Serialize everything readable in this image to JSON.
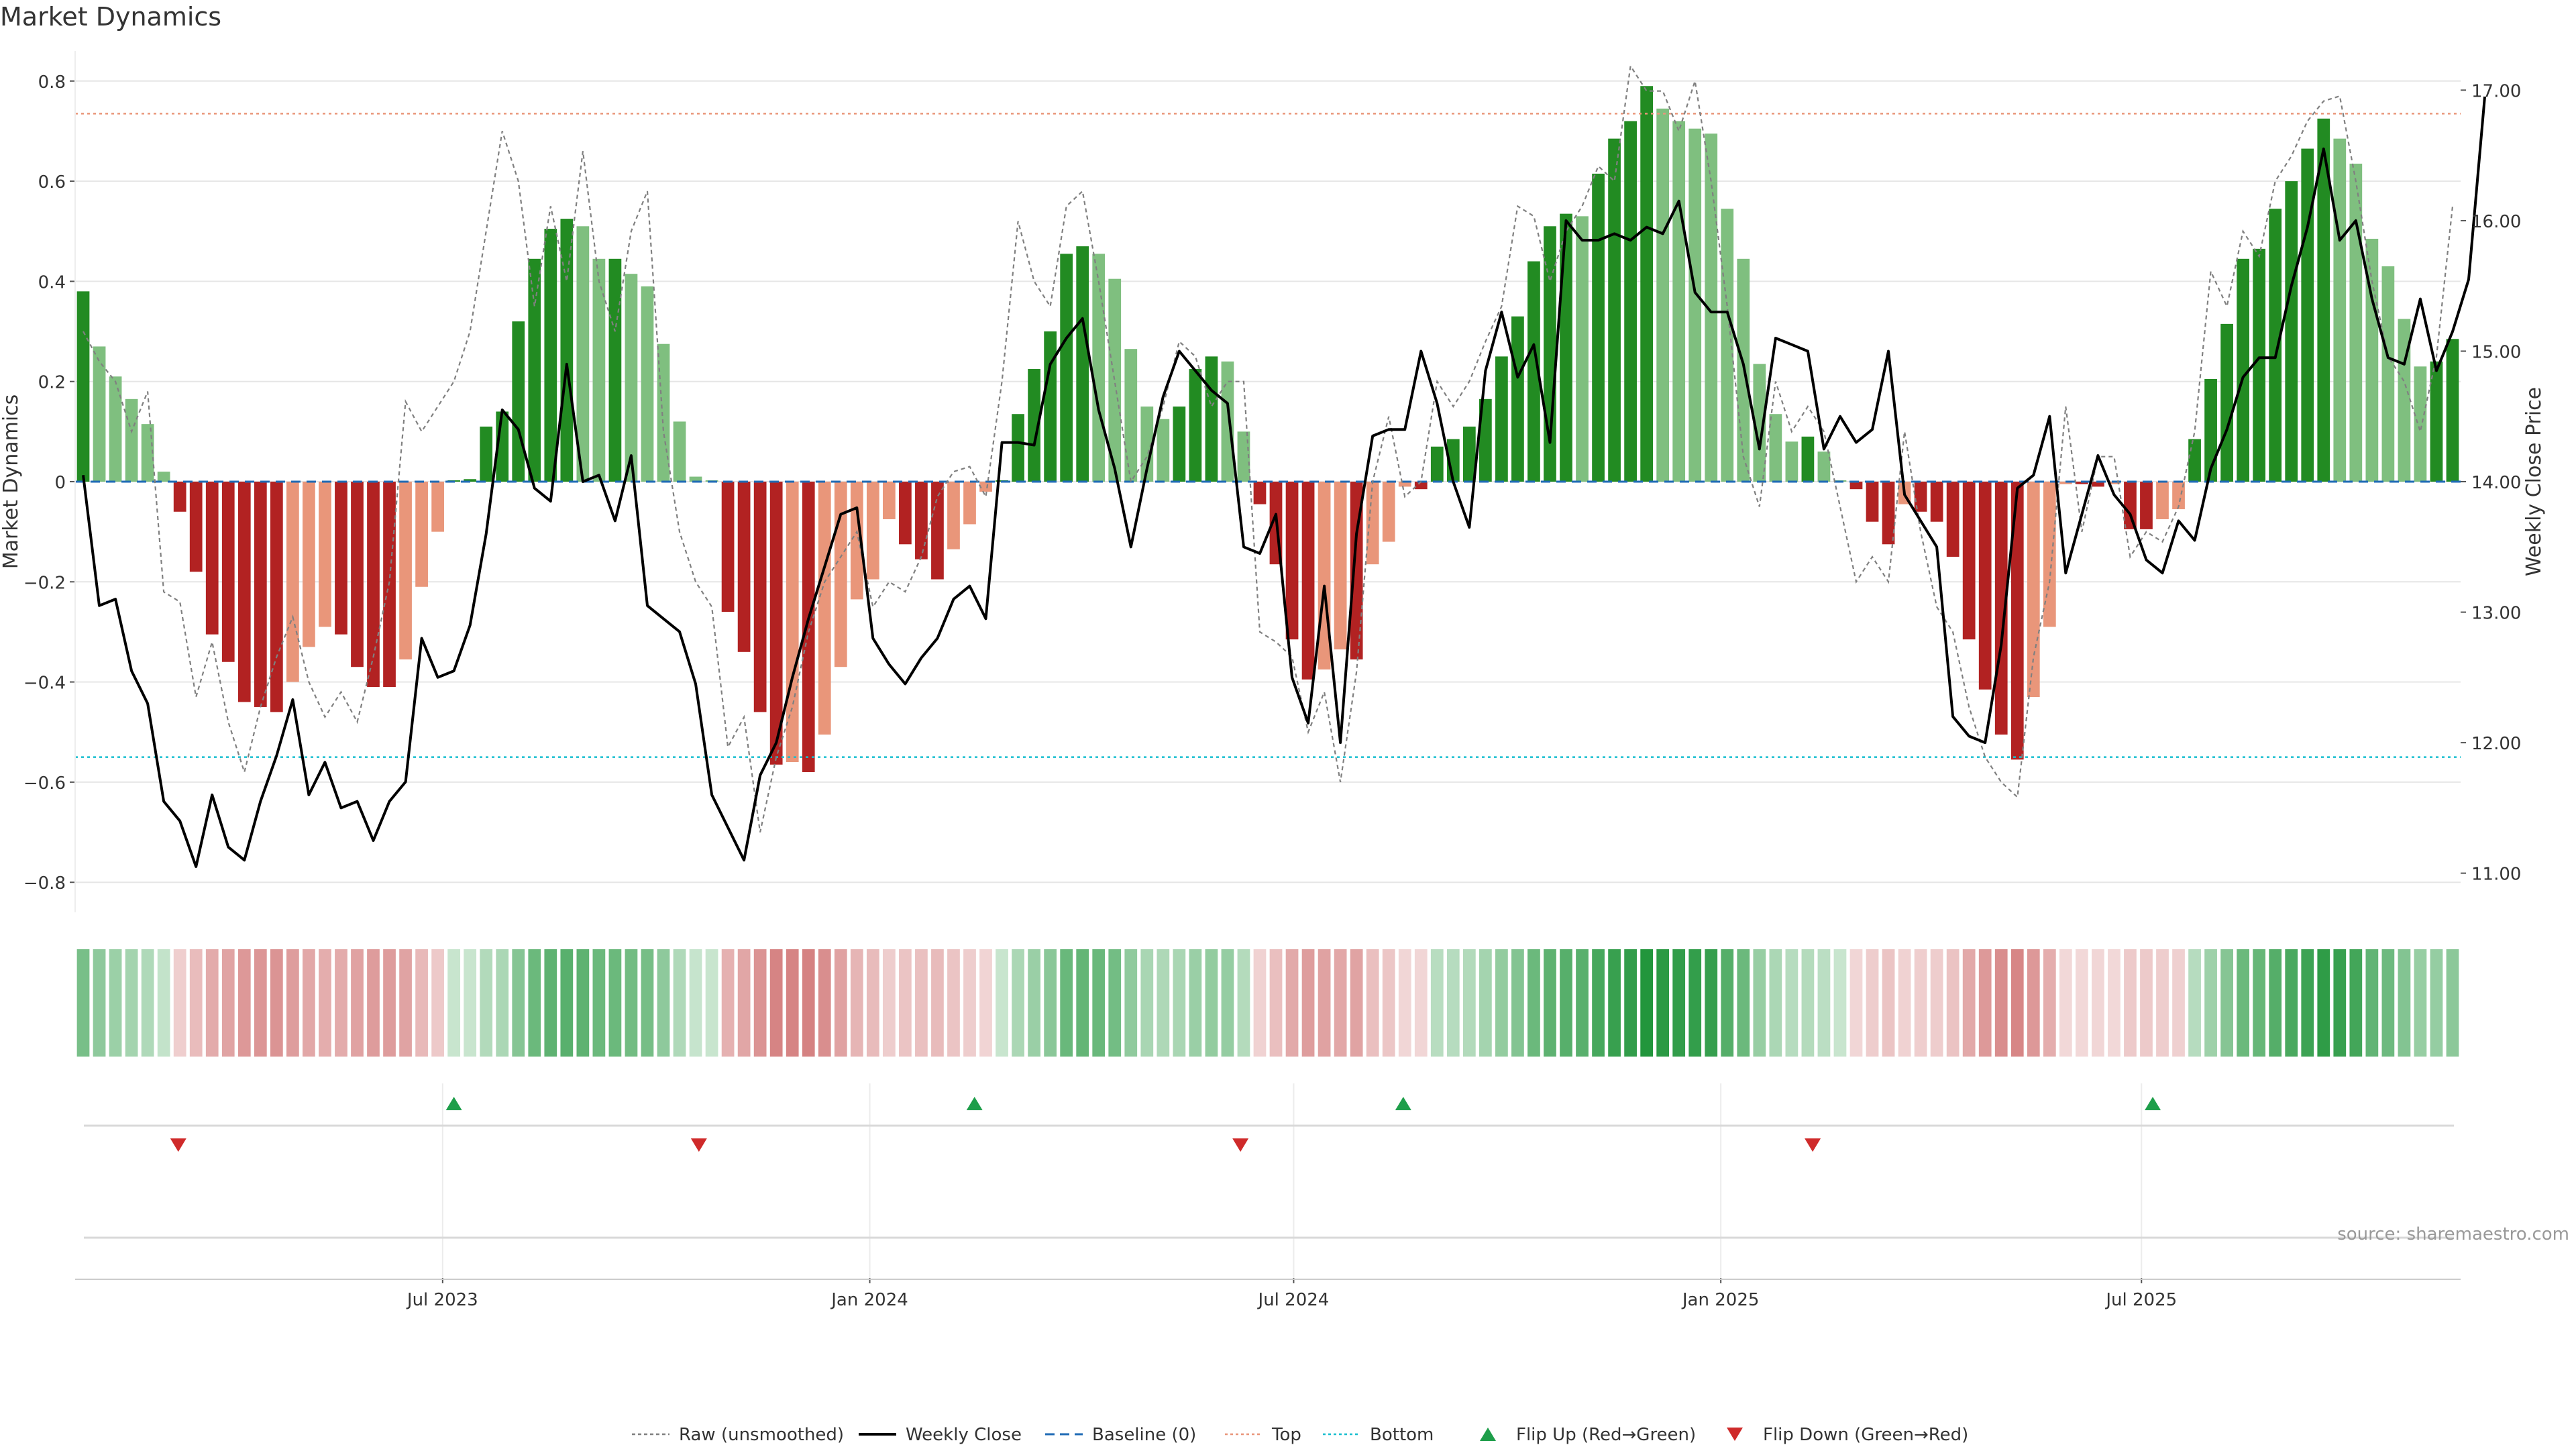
{
  "chart_data": {
    "type": "bar",
    "title": "Market Dynamics",
    "ylabel": "Market Dynamics",
    "y2label": "Weekly Close Price",
    "ylim": [
      -0.86,
      0.86
    ],
    "y2lim": [
      10.7,
      17.3
    ],
    "yticks": [
      "0.8",
      "0.6",
      "0.4",
      "0.2",
      "0",
      "−0.2",
      "−0.4",
      "−0.6",
      "−0.8"
    ],
    "y2ticks": [
      "17.00",
      "16.00",
      "15.00",
      "14.00",
      "13.00",
      "12.00",
      "11.00"
    ],
    "xticks": [
      {
        "label": "Jul 2023",
        "week": 22.8
      },
      {
        "label": "Jan 2024",
        "week": 49.3
      },
      {
        "label": "Jul 2024",
        "week": 75.6
      },
      {
        "label": "Jan 2025",
        "week": 102.1
      },
      {
        "label": "Jul 2025",
        "week": 128.2
      }
    ],
    "x": "week index 0–145 (weekly points, approx. Feb 2023 – Nov 2025)",
    "top_threshold": 0.735,
    "bottom_threshold": -0.55,
    "series": [
      {
        "name": "Raw (unsmoothed)"
      },
      {
        "name": "Weekly Close"
      }
    ],
    "bars": [
      0.38,
      0.27,
      0.21,
      0.165,
      0.115,
      0.02,
      -0.06,
      -0.18,
      -0.305,
      -0.36,
      -0.44,
      -0.45,
      -0.46,
      -0.4,
      -0.33,
      -0.29,
      -0.305,
      -0.37,
      -0.41,
      -0.41,
      -0.355,
      -0.21,
      -0.1,
      0,
      0.005,
      0.11,
      0.14,
      0.32,
      0.445,
      0.505,
      0.525,
      0.51,
      0.445,
      0.445,
      0.415,
      0.39,
      0.275,
      0.12,
      0.01,
      0,
      -0.26,
      -0.34,
      -0.46,
      -0.565,
      -0.56,
      -0.58,
      -0.505,
      -0.37,
      -0.235,
      -0.195,
      -0.075,
      -0.125,
      -0.155,
      -0.195,
      -0.135,
      -0.085,
      -0.02,
      0,
      0.135,
      0.225,
      0.3,
      0.455,
      0.47,
      0.455,
      0.405,
      0.265,
      0.15,
      0.125,
      0.15,
      0.225,
      0.25,
      0.24,
      0.1,
      -0.045,
      -0.165,
      -0.315,
      -0.395,
      -0.375,
      -0.335,
      -0.355,
      -0.165,
      -0.12,
      -0.01,
      -0.015,
      0.07,
      0.085,
      0.11,
      0.165,
      0.25,
      0.33,
      0.44,
      0.51,
      0.535,
      0.53,
      0.615,
      0.685,
      0.72,
      0.79,
      0.745,
      0.72,
      0.705,
      0.695,
      0.545,
      0.445,
      0.235,
      0.135,
      0.08,
      0.09,
      0.06,
      0,
      -0.015,
      -0.08,
      -0.125,
      -0.045,
      -0.06,
      -0.08,
      -0.15,
      -0.315,
      -0.415,
      -0.505,
      -0.555,
      -0.43,
      -0.29,
      -0.005,
      -0.005,
      -0.01,
      -0.005,
      -0.095,
      -0.095,
      -0.075,
      -0.055,
      0.085,
      0.205,
      0.315,
      0.445,
      0.465,
      0.545,
      0.6,
      0.665,
      0.725,
      0.685,
      0.635,
      0.485,
      0.43,
      0.325,
      0.23,
      0.24,
      0.285
    ],
    "raw": [
      0.3,
      0.24,
      0.2,
      0.1,
      0.18,
      -0.22,
      -0.24,
      -0.43,
      -0.32,
      -0.48,
      -0.58,
      -0.45,
      -0.35,
      -0.27,
      -0.4,
      -0.47,
      -0.42,
      -0.48,
      -0.35,
      -0.2,
      0.16,
      0.1,
      0.15,
      0.2,
      0.3,
      0.5,
      0.7,
      0.6,
      0.35,
      0.55,
      0.4,
      0.66,
      0.4,
      0.3,
      0.5,
      0.58,
      0.1,
      -0.1,
      -0.2,
      -0.25,
      -0.53,
      -0.47,
      -0.7,
      -0.55,
      -0.45,
      -0.3,
      -0.2,
      -0.15,
      -0.1,
      -0.25,
      -0.2,
      -0.22,
      -0.15,
      -0.03,
      0.02,
      0.03,
      -0.03,
      0.2,
      0.52,
      0.4,
      0.35,
      0.55,
      0.58,
      0.4,
      0.2,
      0,
      0.05,
      0.15,
      0.28,
      0.25,
      0.15,
      0.2,
      0.2,
      -0.3,
      -0.32,
      -0.35,
      -0.5,
      -0.42,
      -0.6,
      -0.38,
      0,
      0.13,
      -0.03,
      0,
      0.2,
      0.15,
      0.2,
      0.28,
      0.35,
      0.55,
      0.53,
      0.4,
      0.5,
      0.55,
      0.63,
      0.6,
      0.83,
      0.78,
      0.78,
      0.7,
      0.8,
      0.6,
      0.35,
      0.05,
      -0.05,
      0.2,
      0.1,
      0.15,
      0.1,
      -0.05,
      -0.2,
      -0.15,
      -0.2,
      0.1,
      -0.1,
      -0.25,
      -0.3,
      -0.45,
      -0.55,
      -0.6,
      -0.63,
      -0.35,
      -0.2,
      0.15,
      -0.1,
      0.05,
      0.05,
      -0.15,
      -0.1,
      -0.12,
      -0.05,
      0.1,
      0.42,
      0.35,
      0.5,
      0.45,
      0.6,
      0.65,
      0.72,
      0.76,
      0.77,
      0.6,
      0.4,
      0.25,
      0.2,
      0.1,
      0.25,
      0.55
    ],
    "close": [
      14.05,
      13.05,
      13.1,
      12.55,
      12.3,
      11.55,
      11.4,
      11.05,
      11.6,
      11.2,
      11.1,
      11.55,
      11.9,
      12.33,
      11.6,
      11.85,
      11.5,
      11.55,
      11.25,
      11.55,
      11.7,
      12.8,
      12.5,
      12.55,
      12.9,
      13.6,
      14.55,
      14.4,
      13.95,
      13.85,
      14.9,
      14,
      14.05,
      13.7,
      14.2,
      13.05,
      12.95,
      12.85,
      12.45,
      11.6,
      11.35,
      11.1,
      11.75,
      12,
      12.5,
      12.95,
      13.35,
      13.75,
      13.8,
      12.8,
      12.6,
      12.45,
      12.65,
      12.8,
      13.1,
      13.2,
      12.95,
      14.3,
      14.3,
      14.28,
      14.9,
      15.1,
      15.25,
      14.55,
      14.1,
      13.5,
      14.1,
      14.65,
      15.0,
      14.85,
      14.7,
      14.6,
      13.5,
      13.45,
      13.75,
      12.5,
      12.15,
      13.2,
      12.0,
      13.6,
      14.35,
      14.4,
      14.4,
      15.0,
      14.6,
      14.0,
      13.65,
      14.85,
      15.3,
      14.8,
      15.05,
      14.3,
      16.0,
      15.85,
      15.85,
      15.9,
      15.85,
      15.95,
      15.9,
      16.15,
      15.45,
      15.3,
      15.3,
      14.9,
      14.25,
      15.1,
      15.05,
      15.0,
      14.25,
      14.5,
      14.3,
      14.4,
      15.0,
      13.9,
      13.7,
      13.5,
      12.2,
      12.05,
      12.0,
      12.75,
      13.95,
      14.05,
      14.5,
      13.3,
      13.75,
      14.2,
      13.9,
      13.75,
      13.4,
      13.3,
      13.7,
      13.55,
      14.1,
      14.4,
      14.8,
      14.95,
      14.95,
      15.5,
      15.95,
      16.55,
      15.85,
      16.0,
      15.4,
      14.95,
      14.9,
      15.4,
      14.85,
      15.15,
      15.55,
      16.95
    ],
    "heat_strip": "colour intensity per week tracks the bar value (green positive, red negative)",
    "flip_up_weeks": [
      23.5,
      55.8,
      82.4,
      128.9
    ],
    "flip_down_weeks": [
      6.4,
      38.7,
      72.3,
      107.8
    ],
    "legend_position": "bottom-center",
    "annotation": "source: sharemaestro.com",
    "colors": {
      "bar_strong_pos": "#228b22",
      "bar_weak_pos": "#7fbf7f",
      "bar_strong_neg": "#b22222",
      "bar_weak_neg": "#e9967a",
      "close_line": "#000000",
      "raw_line": "#808080",
      "baseline": "#1f6bb5",
      "top": "#e9967a",
      "bottom": "#17becf",
      "flip_up": "#1e9e4a",
      "flip_down": "#cf2a2a"
    }
  },
  "legend": [
    {
      "label": "Raw (unsmoothed)",
      "icon": "dotted-gray-line-icon"
    },
    {
      "label": "Weekly Close",
      "icon": "solid-black-line-icon"
    },
    {
      "label": "Baseline (0)",
      "icon": "dashed-blue-line-icon"
    },
    {
      "label": "Top",
      "icon": "dotted-salmon-line-icon"
    },
    {
      "label": "Bottom",
      "icon": "dotted-cyan-line-icon"
    },
    {
      "label": "Flip Up (Red→Green)",
      "icon": "green-up-triangle-icon"
    },
    {
      "label": "Flip Down (Green→Red)",
      "icon": "red-down-triangle-icon"
    }
  ]
}
